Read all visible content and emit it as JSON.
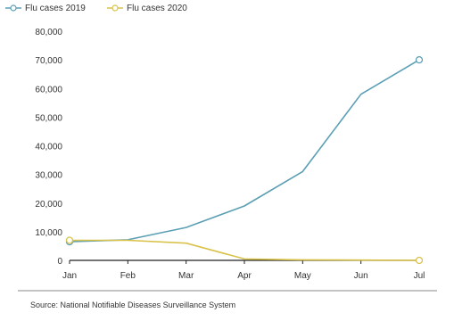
{
  "chart_data": {
    "type": "line",
    "categories": [
      "Jan",
      "Feb",
      "Mar",
      "Apr",
      "May",
      "Jun",
      "Jul"
    ],
    "series": [
      {
        "name": "Flu cases 2019",
        "color": "#5b9fb5",
        "values": [
          6500,
          7200,
          11500,
          19000,
          31000,
          58000,
          70000
        ]
      },
      {
        "name": "Flu cases 2020",
        "color": "#d9c24a",
        "values": [
          7000,
          7000,
          6000,
          500,
          200,
          100,
          0
        ]
      }
    ],
    "ylim": [
      0,
      80000
    ],
    "yticks": [
      "0",
      "10,000",
      "20,000",
      "30,000",
      "40,000",
      "50,000",
      "60,000",
      "70,000",
      "80,000"
    ],
    "ytick_values": [
      0,
      10000,
      20000,
      30000,
      40000,
      50000,
      60000,
      70000,
      80000
    ],
    "legend": {
      "position": "top-left"
    },
    "grid": false,
    "source": "Source: National Notifiable Diseases Surveillance System"
  }
}
